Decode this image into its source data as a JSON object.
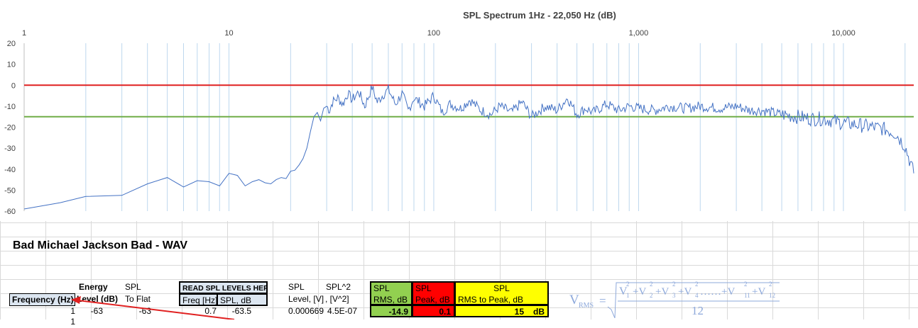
{
  "chart": {
    "title": "SPL Spectrum 1Hz - 22,050 Hz (dB)",
    "x_tick_labels": [
      "1",
      "10",
      "100",
      "1,000",
      "10,000"
    ],
    "y_tick_labels": [
      "20",
      "10",
      "0",
      "-10",
      "-20",
      "-30",
      "-40",
      "-50",
      "-60"
    ]
  },
  "chart_data": {
    "type": "line",
    "title": "SPL Spectrum 1Hz - 22,050 Hz (dB)",
    "x_scale": "log",
    "xlim": [
      1,
      22050
    ],
    "ylim": [
      -60,
      20
    ],
    "y_ticks": [
      20,
      10,
      0,
      -10,
      -20,
      -30,
      -40,
      -50,
      -60
    ],
    "x_ticks": [
      1,
      10,
      100,
      1000,
      10000
    ],
    "reference_lines": [
      {
        "y": 0,
        "color": "#e02020"
      },
      {
        "y": -15,
        "color": "#70ad47"
      }
    ],
    "series": [
      {
        "color": "#4472c4",
        "x": [
          1,
          1.5,
          2,
          3,
          4,
          5,
          6,
          7,
          8,
          9,
          10,
          11,
          12,
          13,
          14,
          15,
          16,
          17,
          18,
          19,
          20,
          21,
          22,
          23,
          24,
          25,
          26,
          27,
          28,
          29,
          30,
          31,
          32,
          34,
          36,
          38,
          40,
          43,
          46,
          50,
          53,
          56,
          60,
          65,
          70,
          75,
          80,
          90,
          100,
          110,
          120,
          135,
          150,
          170,
          190,
          210,
          240,
          270,
          300,
          350,
          400,
          450,
          500,
          550,
          600,
          700,
          800,
          900,
          1000,
          1200,
          1400,
          1700,
          2000,
          2500,
          3000,
          3500,
          4000,
          5000,
          6000,
          7000,
          8000,
          10000,
          12000,
          14000,
          16000,
          18000,
          20000,
          22050
        ],
        "y": [
          -59,
          -56,
          -53,
          -52.5,
          -47,
          -44,
          -48.5,
          -45.5,
          -46,
          -48,
          -42,
          -43,
          -48,
          -46,
          -45,
          -46.5,
          -47,
          -45,
          -44,
          -44.5,
          -41,
          -40.5,
          -38,
          -35,
          -30,
          -22,
          -15,
          -13,
          -17,
          -11,
          -10,
          -12,
          -8,
          -6,
          -9,
          -4,
          -7,
          -3,
          -10,
          -1,
          -8,
          -5,
          -2,
          -9,
          -4,
          -12,
          -6,
          -10,
          -5,
          -13,
          -9,
          -11,
          -7,
          -12,
          -14,
          -10,
          -13,
          -8,
          -15,
          -10,
          -12,
          -6,
          -14,
          -11,
          -13,
          -9,
          -12,
          -10,
          -11,
          -12,
          -10,
          -11,
          -10,
          -11,
          -10,
          -12,
          -12,
          -14,
          -15,
          -16,
          -16,
          -18,
          -19,
          -20,
          -21,
          -23,
          -29,
          -42
        ]
      }
    ]
  },
  "sheet": {
    "song_title": "Bad Michael Jackson Bad - WAV",
    "headers": {
      "energy": "Energy",
      "spl_a": "SPL",
      "frequency": "Frequency (Hz)",
      "level_db": "Level (dB)",
      "to_flat": "To Flat",
      "read_here": "READ SPL LEVELS HERE:",
      "freq_hz": "Freq [Hz]",
      "spl_db": "SPL, dB",
      "spl_b": "SPL",
      "spl_sq": "SPL^2",
      "level_v": "Level, [V]",
      "v_sq": ", [V^2]"
    },
    "summary": {
      "rms_title": "SPL",
      "rms_sub": "RMS, dB",
      "rms_value": "-14.9",
      "peak_title": "SPL",
      "peak_sub": "Peak, dB",
      "peak_value": "0.1",
      "rtp_title": "SPL",
      "rtp_sub": "RMS to Peak, dB",
      "rtp_value": "15",
      "rtp_unit": "dB"
    },
    "row1": {
      "frequency": "1",
      "level": "-63",
      "to_flat": "-63",
      "freq": "0.7",
      "spl": "-63.5",
      "level_v": "0.000669",
      "v_sq": "4.5E-07"
    },
    "row2": {
      "frequency": "1"
    }
  },
  "colors": {
    "rms_bg": "#92d050",
    "peak_bg": "#ff0000",
    "rtp_bg": "#ffff00",
    "header_bg": "#dce6f1",
    "formula": "#8ea9db",
    "spectrum": "#4472c4",
    "zero_line": "#e02020",
    "rms_line": "#70ad47"
  }
}
